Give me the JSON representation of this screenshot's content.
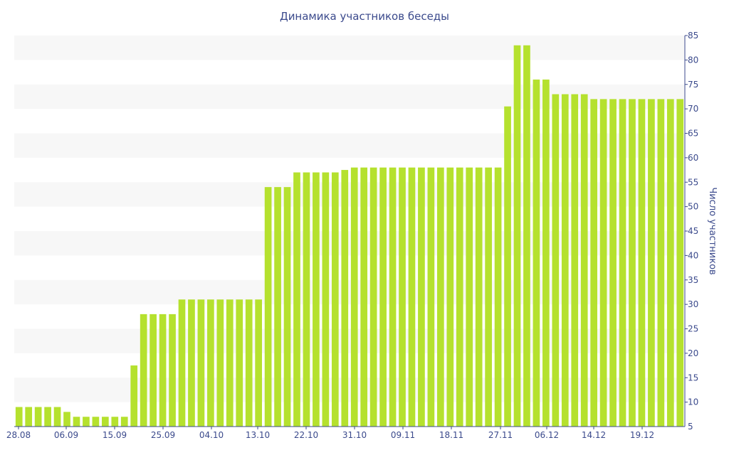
{
  "chart_data": {
    "type": "bar",
    "title": "Динамика участников беседы",
    "xlabel": "",
    "ylabel": "Число участников",
    "ylim": [
      5,
      85
    ],
    "y_ticks": [
      10,
      15,
      20,
      25,
      30,
      35,
      40,
      45,
      50,
      55,
      60,
      65,
      70,
      75,
      80,
      85
    ],
    "y_axis_side": "right",
    "y_tick_bottom_label": "5",
    "x_tick_labels": [
      "28.08",
      "06.09",
      "15.09",
      "25.09",
      "04.10",
      "13.10",
      "22.10",
      "31.10",
      "09.11",
      "18.11",
      "27.11",
      "06.12",
      "14.12",
      "19.12"
    ],
    "values": [
      9,
      9,
      9,
      9,
      9,
      8,
      7,
      7,
      7,
      7,
      7,
      7,
      17.5,
      28,
      28,
      28,
      28,
      31,
      31,
      31,
      31,
      31,
      31,
      31,
      31,
      31,
      54,
      54,
      54,
      57,
      57,
      57,
      57,
      57,
      57.5,
      58,
      58,
      58,
      58,
      58,
      58,
      58,
      58,
      58,
      58,
      58,
      58,
      58,
      58,
      58,
      58,
      70.5,
      83,
      83,
      76,
      76,
      73,
      73,
      73,
      73,
      72,
      72,
      72,
      72,
      72,
      72,
      72,
      72,
      72,
      72
    ],
    "grid": "horizontal bands",
    "legend": "none"
  },
  "colors": {
    "bar": "#b5e12e",
    "band": "#f7f7f7",
    "text": "#3b4a8c",
    "axis": "#3b4a8c"
  }
}
